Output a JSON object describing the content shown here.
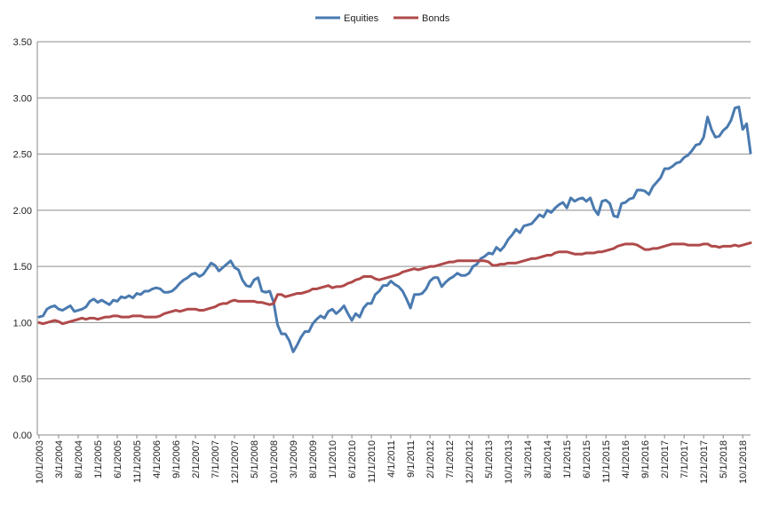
{
  "chart_data": {
    "type": "line",
    "title": "",
    "xlabel": "",
    "ylabel": "",
    "ylim": [
      0,
      3.5
    ],
    "yticks": [
      "0.00",
      "0.50",
      "1.00",
      "1.50",
      "2.00",
      "2.50",
      "3.00",
      "3.50"
    ],
    "xtick_labels": [
      "10/1/2003",
      "3/1/2004",
      "8/1/2004",
      "1/1/2005",
      "6/1/2005",
      "11/1/2005",
      "4/1/2006",
      "9/1/2006",
      "2/1/2007",
      "7/1/2007",
      "12/1/2007",
      "5/1/2008",
      "10/1/2008",
      "3/1/2009",
      "8/1/2009",
      "1/1/2010",
      "6/1/2010",
      "11/1/2010",
      "4/1/2011",
      "9/1/2011",
      "2/1/2012",
      "7/1/2012",
      "12/1/2012",
      "5/1/2013",
      "10/1/2013",
      "3/1/2014",
      "8/1/2014",
      "1/1/2015",
      "6/1/2015",
      "11/1/2015",
      "4/1/2016",
      "9/1/2016",
      "2/1/2017",
      "7/1/2017",
      "12/1/2017",
      "5/1/2018",
      "10/1/2018"
    ],
    "legend_position": "top-center",
    "grid": "horizontal",
    "series": [
      {
        "name": "Equities",
        "color": "#4a7ab0",
        "values": [
          1.05,
          1.06,
          1.12,
          1.14,
          1.15,
          1.12,
          1.11,
          1.13,
          1.15,
          1.1,
          1.11,
          1.12,
          1.14,
          1.19,
          1.21,
          1.18,
          1.2,
          1.18,
          1.16,
          1.2,
          1.19,
          1.23,
          1.22,
          1.24,
          1.22,
          1.26,
          1.25,
          1.28,
          1.28,
          1.3,
          1.31,
          1.3,
          1.27,
          1.27,
          1.28,
          1.31,
          1.35,
          1.38,
          1.4,
          1.43,
          1.44,
          1.41,
          1.43,
          1.48,
          1.53,
          1.51,
          1.46,
          1.49,
          1.52,
          1.55,
          1.49,
          1.47,
          1.38,
          1.33,
          1.32,
          1.38,
          1.4,
          1.28,
          1.27,
          1.28,
          1.18,
          0.98,
          0.9,
          0.9,
          0.84,
          0.74,
          0.8,
          0.87,
          0.92,
          0.92,
          0.99,
          1.03,
          1.06,
          1.04,
          1.1,
          1.12,
          1.08,
          1.11,
          1.15,
          1.08,
          1.02,
          1.08,
          1.05,
          1.13,
          1.17,
          1.17,
          1.25,
          1.28,
          1.33,
          1.33,
          1.37,
          1.34,
          1.32,
          1.28,
          1.21,
          1.13,
          1.25,
          1.25,
          1.26,
          1.3,
          1.37,
          1.4,
          1.4,
          1.32,
          1.36,
          1.39,
          1.41,
          1.44,
          1.42,
          1.42,
          1.44,
          1.5,
          1.52,
          1.57,
          1.59,
          1.62,
          1.61,
          1.67,
          1.64,
          1.68,
          1.74,
          1.78,
          1.83,
          1.8,
          1.86,
          1.87,
          1.88,
          1.92,
          1.96,
          1.94,
          2.0,
          1.98,
          2.02,
          2.05,
          2.07,
          2.02,
          2.11,
          2.08,
          2.1,
          2.11,
          2.08,
          2.11,
          2.01,
          1.96,
          2.08,
          2.09,
          2.06,
          1.95,
          1.94,
          2.06,
          2.07,
          2.1,
          2.11,
          2.18,
          2.18,
          2.17,
          2.14,
          2.21,
          2.25,
          2.29,
          2.37,
          2.37,
          2.39,
          2.42,
          2.43,
          2.47,
          2.49,
          2.53,
          2.58,
          2.59,
          2.65,
          2.83,
          2.72,
          2.65,
          2.66,
          2.71,
          2.74,
          2.8,
          2.91,
          2.92,
          2.72,
          2.77,
          2.51
        ]
      },
      {
        "name": "Bonds",
        "color": "#b04a4a",
        "values": [
          1.0,
          0.99,
          1.0,
          1.01,
          1.02,
          1.01,
          0.99,
          1.0,
          1.01,
          1.02,
          1.03,
          1.04,
          1.03,
          1.04,
          1.04,
          1.03,
          1.04,
          1.05,
          1.05,
          1.06,
          1.06,
          1.05,
          1.05,
          1.05,
          1.06,
          1.06,
          1.06,
          1.05,
          1.05,
          1.05,
          1.05,
          1.06,
          1.08,
          1.09,
          1.1,
          1.11,
          1.1,
          1.11,
          1.12,
          1.12,
          1.12,
          1.11,
          1.11,
          1.12,
          1.13,
          1.14,
          1.16,
          1.17,
          1.17,
          1.19,
          1.2,
          1.19,
          1.19,
          1.19,
          1.19,
          1.19,
          1.18,
          1.18,
          1.17,
          1.16,
          1.17,
          1.25,
          1.25,
          1.23,
          1.24,
          1.25,
          1.26,
          1.26,
          1.27,
          1.28,
          1.3,
          1.3,
          1.31,
          1.32,
          1.33,
          1.31,
          1.32,
          1.32,
          1.33,
          1.35,
          1.36,
          1.38,
          1.39,
          1.41,
          1.41,
          1.41,
          1.39,
          1.38,
          1.39,
          1.4,
          1.41,
          1.42,
          1.43,
          1.45,
          1.46,
          1.47,
          1.48,
          1.47,
          1.48,
          1.49,
          1.5,
          1.5,
          1.51,
          1.52,
          1.53,
          1.54,
          1.54,
          1.55,
          1.55,
          1.55,
          1.55,
          1.55,
          1.55,
          1.55,
          1.55,
          1.54,
          1.51,
          1.51,
          1.52,
          1.52,
          1.53,
          1.53,
          1.53,
          1.54,
          1.55,
          1.56,
          1.57,
          1.57,
          1.58,
          1.59,
          1.6,
          1.6,
          1.62,
          1.63,
          1.63,
          1.63,
          1.62,
          1.61,
          1.61,
          1.61,
          1.62,
          1.62,
          1.62,
          1.63,
          1.63,
          1.64,
          1.65,
          1.66,
          1.68,
          1.69,
          1.7,
          1.7,
          1.7,
          1.69,
          1.67,
          1.65,
          1.65,
          1.66,
          1.66,
          1.67,
          1.68,
          1.69,
          1.7,
          1.7,
          1.7,
          1.7,
          1.69,
          1.69,
          1.69,
          1.69,
          1.7,
          1.7,
          1.68,
          1.68,
          1.67,
          1.68,
          1.68,
          1.68,
          1.69,
          1.68,
          1.69,
          1.7,
          1.71
        ]
      }
    ]
  }
}
